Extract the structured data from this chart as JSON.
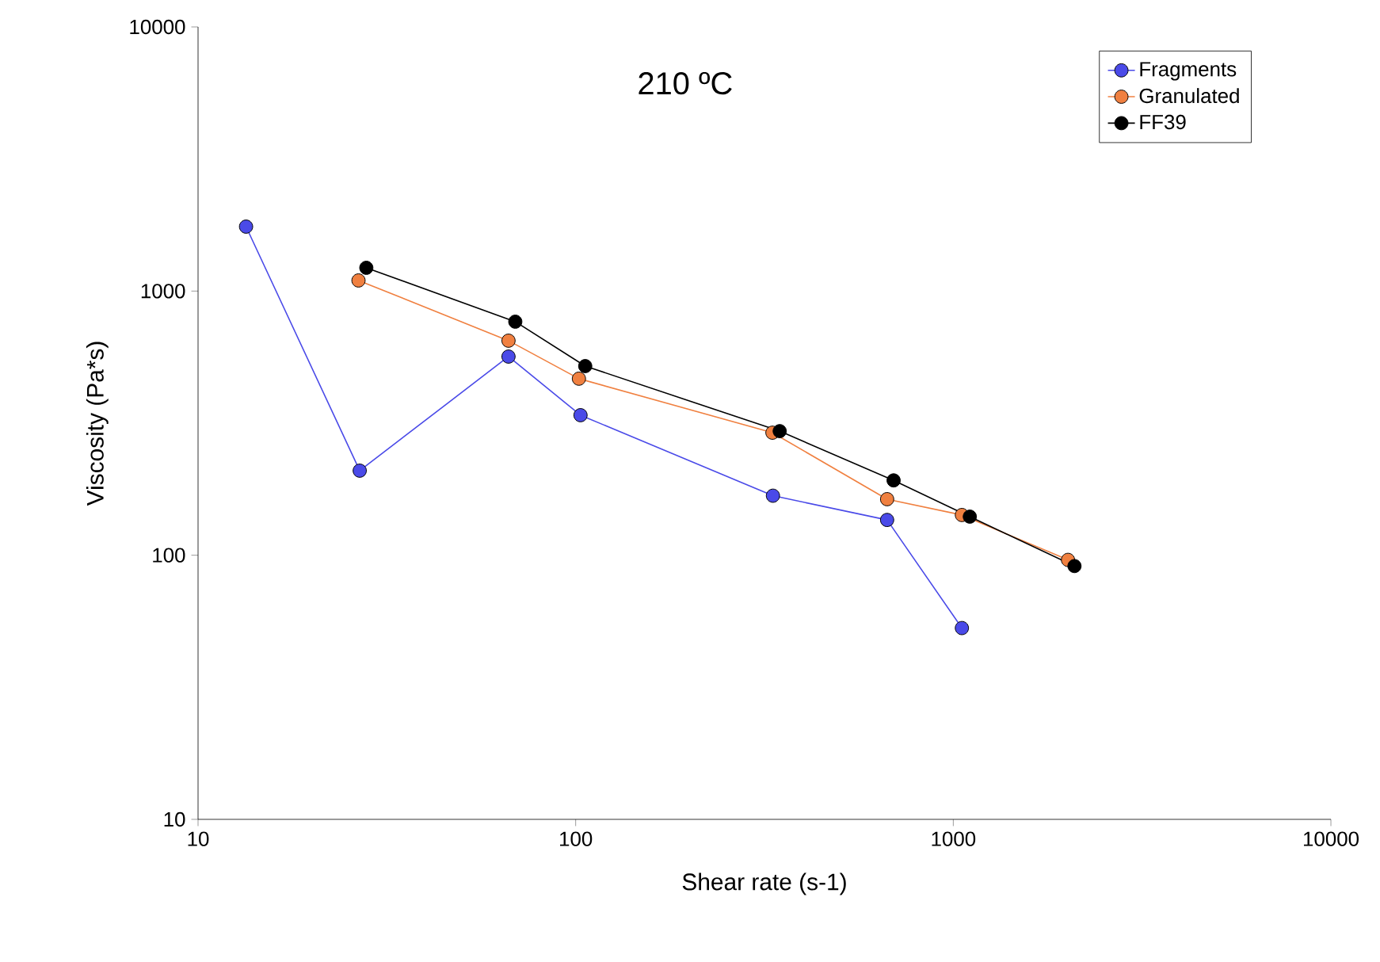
{
  "chart_data": {
    "type": "line",
    "xlabel": "Shear rate (s-1)",
    "ylabel": "Viscosity (Pa*s)",
    "annotations": [
      "210 ºC"
    ],
    "log": "xy",
    "xlim": [
      10,
      10000
    ],
    "ylim": [
      10,
      10000
    ],
    "xticks": [
      10,
      100,
      1000,
      10000
    ],
    "yticks": [
      10,
      100,
      1000,
      10000
    ],
    "legend": "top right",
    "marker": "circle",
    "line_style": "solid",
    "series": [
      {
        "name": "Fragments",
        "color": "#4a4ae8",
        "x": [
          13.4,
          26.8,
          66.4,
          103,
          333,
          668,
          1054
        ],
        "values": [
          1754,
          209,
          565,
          339,
          168,
          136,
          53
        ]
      },
      {
        "name": "Granulated",
        "color": "#f08040",
        "x": [
          26.6,
          66.4,
          102,
          332,
          668,
          1054,
          2013
        ],
        "values": [
          1097,
          649,
          466,
          291,
          163,
          142,
          96
        ]
      },
      {
        "name": "FF39",
        "color": "#000000",
        "x": [
          27.9,
          69.2,
          106,
          347,
          695,
          1106,
          2094
        ],
        "values": [
          1225,
          766,
          520,
          295,
          192,
          140,
          91
        ]
      }
    ]
  }
}
